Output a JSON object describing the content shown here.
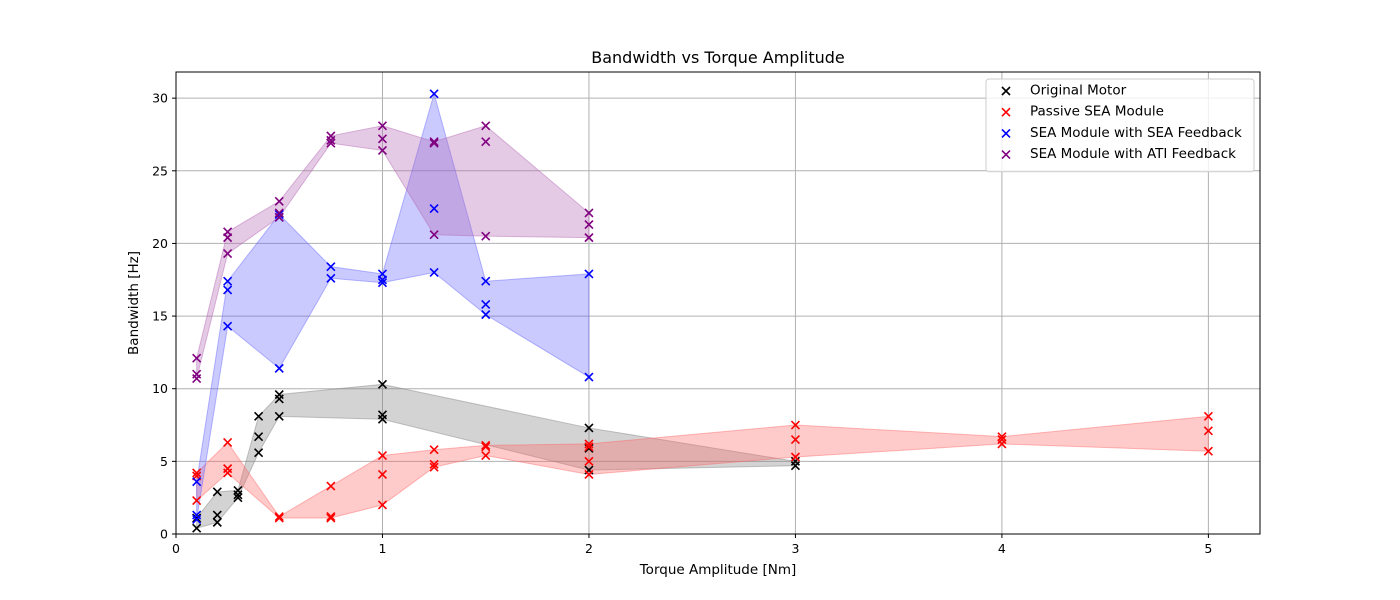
{
  "chart_data": {
    "type": "scatter",
    "title": "Bandwidth vs Torque Amplitude",
    "xlabel": "Torque Amplitude [Nm]",
    "ylabel": "Bandwidth [Hz]",
    "xlim": [
      0,
      5.25
    ],
    "ylim": [
      0,
      31.8
    ],
    "xticks": [
      0,
      1,
      2,
      3,
      4,
      5
    ],
    "yticks": [
      0,
      5,
      10,
      15,
      20,
      25,
      30
    ],
    "grid": true,
    "legend_position": "top-right",
    "series": [
      {
        "name": "Original Motor",
        "color": "#000000",
        "fill_color": "#808080",
        "points": [
          [
            0.1,
            0.4
          ],
          [
            0.1,
            1.1
          ],
          [
            0.2,
            0.8
          ],
          [
            0.2,
            1.3
          ],
          [
            0.2,
            2.9
          ],
          [
            0.3,
            2.5
          ],
          [
            0.3,
            2.7
          ],
          [
            0.3,
            3.0
          ],
          [
            0.4,
            5.6
          ],
          [
            0.4,
            6.7
          ],
          [
            0.4,
            8.1
          ],
          [
            0.5,
            8.1
          ],
          [
            0.5,
            9.3
          ],
          [
            0.5,
            9.6
          ],
          [
            1.0,
            7.9
          ],
          [
            1.0,
            8.2
          ],
          [
            1.0,
            10.3
          ],
          [
            2.0,
            4.4
          ],
          [
            2.0,
            5.9
          ],
          [
            2.0,
            7.3
          ],
          [
            3.0,
            4.7
          ],
          [
            3.0,
            5.0
          ]
        ],
        "band_upper": [
          [
            0.1,
            1.1
          ],
          [
            0.2,
            2.9
          ],
          [
            0.3,
            3.0
          ],
          [
            0.4,
            8.1
          ],
          [
            0.5,
            9.6
          ],
          [
            1.0,
            10.3
          ],
          [
            2.0,
            7.3
          ],
          [
            3.0,
            5.0
          ]
        ],
        "band_lower": [
          [
            0.1,
            0.4
          ],
          [
            0.2,
            0.8
          ],
          [
            0.3,
            2.5
          ],
          [
            0.4,
            5.6
          ],
          [
            0.5,
            8.1
          ],
          [
            1.0,
            7.9
          ],
          [
            2.0,
            4.4
          ],
          [
            3.0,
            4.7
          ]
        ]
      },
      {
        "name": "Passive SEA Module",
        "color": "#ff0000",
        "fill_color": "#ff6666",
        "points": [
          [
            0.1,
            2.3
          ],
          [
            0.1,
            4.0
          ],
          [
            0.1,
            4.2
          ],
          [
            0.25,
            4.2
          ],
          [
            0.25,
            4.5
          ],
          [
            0.25,
            6.3
          ],
          [
            0.5,
            1.1
          ],
          [
            0.5,
            1.2
          ],
          [
            0.75,
            1.1
          ],
          [
            0.75,
            1.2
          ],
          [
            0.75,
            3.3
          ],
          [
            1.0,
            2.0
          ],
          [
            1.0,
            4.1
          ],
          [
            1.0,
            5.4
          ],
          [
            1.25,
            4.6
          ],
          [
            1.25,
            4.8
          ],
          [
            1.25,
            5.8
          ],
          [
            1.5,
            5.4
          ],
          [
            1.5,
            6.0
          ],
          [
            1.5,
            6.1
          ],
          [
            2.0,
            4.1
          ],
          [
            2.0,
            5.0
          ],
          [
            2.0,
            6.0
          ],
          [
            2.0,
            6.2
          ],
          [
            3.0,
            5.3
          ],
          [
            3.0,
            6.5
          ],
          [
            3.0,
            7.5
          ],
          [
            4.0,
            6.2
          ],
          [
            4.0,
            6.5
          ],
          [
            4.0,
            6.7
          ],
          [
            5.0,
            5.7
          ],
          [
            5.0,
            7.1
          ],
          [
            5.0,
            8.1
          ]
        ],
        "band_upper": [
          [
            0.1,
            4.2
          ],
          [
            0.25,
            6.3
          ],
          [
            0.5,
            1.2
          ],
          [
            0.75,
            3.3
          ],
          [
            1.0,
            5.4
          ],
          [
            1.25,
            5.8
          ],
          [
            1.5,
            6.1
          ],
          [
            2.0,
            6.2
          ],
          [
            3.0,
            7.5
          ],
          [
            4.0,
            6.7
          ],
          [
            5.0,
            8.1
          ]
        ],
        "band_lower": [
          [
            0.1,
            2.3
          ],
          [
            0.25,
            4.2
          ],
          [
            0.5,
            1.1
          ],
          [
            0.75,
            1.1
          ],
          [
            1.0,
            2.0
          ],
          [
            1.25,
            4.6
          ],
          [
            1.5,
            5.4
          ],
          [
            2.0,
            4.1
          ],
          [
            3.0,
            5.3
          ],
          [
            4.0,
            6.2
          ],
          [
            5.0,
            5.7
          ]
        ]
      },
      {
        "name": "SEA Module with SEA Feedback",
        "color": "#0000ff",
        "fill_color": "#6666ff",
        "points": [
          [
            0.1,
            1.0
          ],
          [
            0.1,
            1.3
          ],
          [
            0.1,
            3.6
          ],
          [
            0.25,
            14.3
          ],
          [
            0.25,
            16.8
          ],
          [
            0.25,
            17.4
          ],
          [
            0.5,
            11.4
          ],
          [
            0.5,
            21.8
          ],
          [
            0.5,
            22.0
          ],
          [
            0.75,
            17.6
          ],
          [
            0.75,
            18.4
          ],
          [
            1.0,
            17.3
          ],
          [
            1.0,
            17.5
          ],
          [
            1.0,
            17.9
          ],
          [
            1.25,
            18.0
          ],
          [
            1.25,
            22.4
          ],
          [
            1.25,
            30.3
          ],
          [
            1.5,
            15.1
          ],
          [
            1.5,
            15.8
          ],
          [
            1.5,
            17.4
          ],
          [
            2.0,
            10.8
          ],
          [
            2.0,
            17.9
          ]
        ],
        "band_upper": [
          [
            0.1,
            3.6
          ],
          [
            0.25,
            17.4
          ],
          [
            0.5,
            22.0
          ],
          [
            0.75,
            18.4
          ],
          [
            1.0,
            17.9
          ],
          [
            1.25,
            30.3
          ],
          [
            1.5,
            17.4
          ],
          [
            2.0,
            17.9
          ]
        ],
        "band_lower": [
          [
            0.1,
            1.0
          ],
          [
            0.25,
            14.3
          ],
          [
            0.5,
            11.4
          ],
          [
            0.75,
            17.6
          ],
          [
            1.0,
            17.3
          ],
          [
            1.25,
            18.0
          ],
          [
            1.5,
            15.1
          ],
          [
            2.0,
            10.8
          ]
        ]
      },
      {
        "name": "SEA Module with ATI Feedback",
        "color": "#800080",
        "fill_color": "#b366b3",
        "points": [
          [
            0.1,
            10.7
          ],
          [
            0.1,
            11.0
          ],
          [
            0.1,
            12.1
          ],
          [
            0.25,
            19.3
          ],
          [
            0.25,
            20.4
          ],
          [
            0.25,
            20.8
          ],
          [
            0.5,
            21.8
          ],
          [
            0.5,
            22.1
          ],
          [
            0.5,
            22.9
          ],
          [
            0.75,
            26.9
          ],
          [
            0.75,
            27.1
          ],
          [
            0.75,
            27.4
          ],
          [
            1.0,
            26.4
          ],
          [
            1.0,
            27.2
          ],
          [
            1.0,
            28.1
          ],
          [
            1.25,
            20.6
          ],
          [
            1.25,
            26.9
          ],
          [
            1.25,
            27.0
          ],
          [
            1.5,
            20.5
          ],
          [
            1.5,
            27.0
          ],
          [
            1.5,
            28.1
          ],
          [
            2.0,
            20.4
          ],
          [
            2.0,
            21.3
          ],
          [
            2.0,
            22.1
          ]
        ],
        "band_upper": [
          [
            0.1,
            12.1
          ],
          [
            0.25,
            20.8
          ],
          [
            0.5,
            22.9
          ],
          [
            0.75,
            27.4
          ],
          [
            1.0,
            28.1
          ],
          [
            1.25,
            27.0
          ],
          [
            1.5,
            28.1
          ],
          [
            2.0,
            22.1
          ]
        ],
        "band_lower": [
          [
            0.1,
            10.7
          ],
          [
            0.25,
            19.3
          ],
          [
            0.5,
            21.8
          ],
          [
            0.75,
            26.9
          ],
          [
            1.0,
            26.4
          ],
          [
            1.25,
            20.6
          ],
          [
            1.5,
            20.5
          ],
          [
            2.0,
            20.4
          ]
        ]
      }
    ]
  }
}
